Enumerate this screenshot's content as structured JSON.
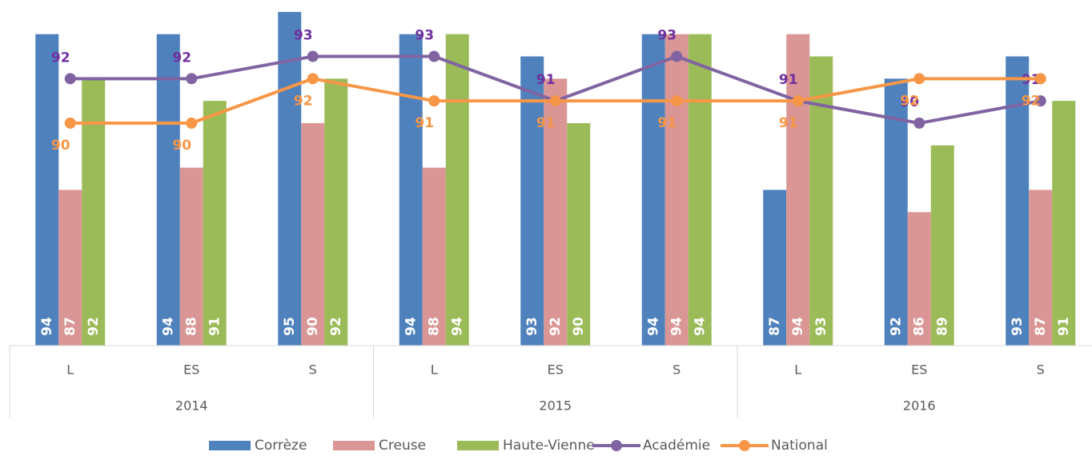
{
  "chart_data": {
    "type": "bar-line",
    "categories": [
      "L",
      "ES",
      "S",
      "L",
      "ES",
      "S",
      "L",
      "ES",
      "S"
    ],
    "category_groups": [
      "2014",
      "2015",
      "2016"
    ],
    "series": [
      {
        "name": "Corrèze",
        "type": "bar",
        "color": "#4f81bd",
        "values": [
          94,
          94,
          95,
          94,
          93,
          94,
          87,
          92,
          93
        ]
      },
      {
        "name": "Creuse",
        "type": "bar",
        "color": "#d99694",
        "values": [
          87,
          88,
          90,
          88,
          92,
          94,
          94,
          86,
          87
        ]
      },
      {
        "name": "Haute-Vienne",
        "type": "bar",
        "color": "#9bbb59",
        "values": [
          92,
          91,
          92,
          94,
          90,
          94,
          93,
          89,
          91
        ]
      },
      {
        "name": "Académie",
        "type": "line",
        "color": "#8064a2",
        "label_color": "#7030a0",
        "values": [
          92,
          92,
          93,
          93,
          91,
          93,
          91,
          90,
          91
        ]
      },
      {
        "name": "National",
        "type": "line",
        "color": "#f79646",
        "label_color": "#f79646",
        "values": [
          90,
          90,
          92,
          91,
          91,
          91,
          91,
          92,
          92
        ]
      }
    ],
    "ylim": [
      80,
      95.5
    ],
    "legend": "bottom"
  }
}
